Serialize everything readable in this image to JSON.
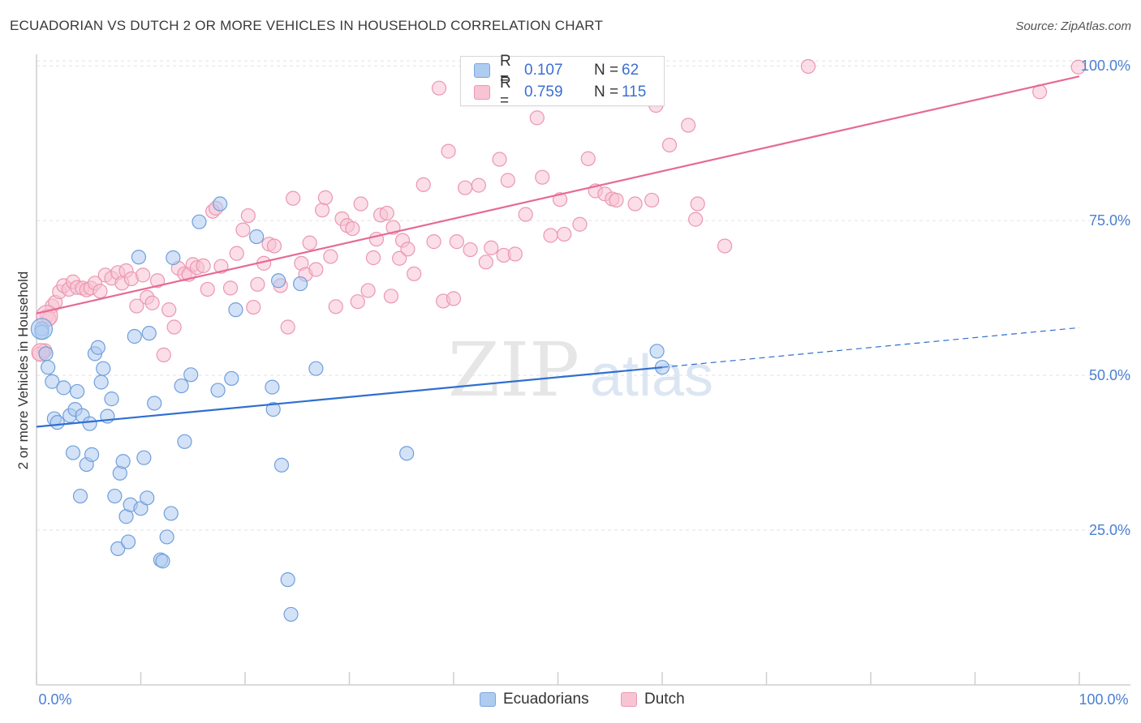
{
  "title": "ECUADORIAN VS DUTCH 2 OR MORE VEHICLES IN HOUSEHOLD CORRELATION CHART",
  "source": "Source: ZipAtlas.com",
  "legend": {
    "rows": [
      {
        "r_label": "R =",
        "r_value": "0.107",
        "n_label": "N =",
        "n_value": "62"
      },
      {
        "r_label": "R =",
        "r_value": "0.759",
        "n_label": "N =",
        "n_value": "115"
      }
    ]
  },
  "bottom_legend": {
    "series1": "Ecuadorians",
    "series2": "Dutch"
  },
  "watermark": {
    "zip": "ZIP",
    "atlas": "atlas"
  },
  "colors": {
    "blue_fill": "#aecbf0",
    "blue_stroke": "#6f9fdc",
    "blue_line": "#2f6fd0",
    "pink_fill": "#f8c3d3",
    "pink_stroke": "#eb97b1",
    "pink_line": "#e66a95",
    "tick_label": "#4a7fd4"
  },
  "chart_data": {
    "type": "scatter",
    "title": "ECUADORIAN VS DUTCH 2 OR MORE VEHICLES IN HOUSEHOLD CORRELATION CHART",
    "xlabel": "",
    "ylabel": "2 or more Vehicles in Household",
    "xlim": [
      0,
      100
    ],
    "ylim": [
      0,
      102
    ],
    "x_tick_labels": [
      "0.0%",
      "100.0%"
    ],
    "y_ticks": [
      25,
      50,
      75,
      100
    ],
    "y_tick_labels": [
      "25.0%",
      "50.0%",
      "75.0%",
      "100.0%"
    ],
    "grid": true,
    "series": [
      {
        "name": "Ecuadorians",
        "r": 0.107,
        "n": 62,
        "trend": {
          "x": [
            0,
            60
          ],
          "y": [
            41.7,
            51.3
          ],
          "dashed_to": [
            100,
            57.7
          ]
        },
        "points": [
          [
            0.5,
            57.5
          ],
          [
            0.5,
            57.0
          ],
          [
            0.9,
            53.5
          ],
          [
            1.1,
            51.3
          ],
          [
            1.5,
            49.0
          ],
          [
            1.7,
            43.0
          ],
          [
            2.0,
            42.4
          ],
          [
            2.6,
            48.0
          ],
          [
            3.2,
            43.5
          ],
          [
            3.5,
            37.5
          ],
          [
            3.7,
            44.5
          ],
          [
            3.9,
            47.4
          ],
          [
            4.2,
            30.5
          ],
          [
            4.4,
            43.5
          ],
          [
            4.8,
            35.6
          ],
          [
            5.1,
            42.2
          ],
          [
            5.3,
            37.2
          ],
          [
            5.6,
            53.5
          ],
          [
            5.9,
            54.5
          ],
          [
            6.2,
            48.9
          ],
          [
            6.4,
            51.1
          ],
          [
            6.8,
            43.4
          ],
          [
            7.2,
            46.2
          ],
          [
            7.5,
            30.5
          ],
          [
            7.8,
            22.0
          ],
          [
            8.0,
            34.2
          ],
          [
            8.3,
            36.1
          ],
          [
            8.6,
            27.2
          ],
          [
            8.8,
            23.1
          ],
          [
            9.0,
            29.1
          ],
          [
            9.4,
            56.3
          ],
          [
            9.8,
            69.1
          ],
          [
            10.0,
            28.5
          ],
          [
            10.3,
            36.7
          ],
          [
            10.6,
            30.2
          ],
          [
            10.8,
            56.8
          ],
          [
            11.3,
            45.5
          ],
          [
            11.9,
            20.2
          ],
          [
            12.1,
            20.0
          ],
          [
            12.5,
            23.9
          ],
          [
            12.9,
            27.7
          ],
          [
            13.1,
            69.0
          ],
          [
            13.9,
            48.3
          ],
          [
            14.2,
            39.3
          ],
          [
            14.8,
            50.1
          ],
          [
            15.6,
            74.8
          ],
          [
            17.4,
            47.6
          ],
          [
            17.6,
            77.7
          ],
          [
            18.7,
            49.5
          ],
          [
            19.1,
            60.6
          ],
          [
            21.1,
            72.4
          ],
          [
            22.6,
            48.1
          ],
          [
            22.7,
            44.5
          ],
          [
            23.2,
            65.3
          ],
          [
            23.5,
            35.5
          ],
          [
            24.1,
            17.0
          ],
          [
            24.4,
            11.4
          ],
          [
            25.3,
            64.8
          ],
          [
            26.8,
            51.1
          ],
          [
            35.5,
            37.4
          ],
          [
            59.5,
            53.9
          ],
          [
            60.0,
            51.3
          ]
        ]
      },
      {
        "name": "Dutch",
        "r": 0.759,
        "n": 115,
        "trend": {
          "x": [
            0,
            100
          ],
          "y": [
            60.0,
            98.3
          ]
        },
        "points": [
          [
            0.3,
            53.5
          ],
          [
            0.8,
            54.0
          ],
          [
            1.0,
            59.6
          ],
          [
            1.2,
            59.2
          ],
          [
            1.5,
            61.2
          ],
          [
            1.8,
            61.8
          ],
          [
            2.2,
            63.5
          ],
          [
            2.6,
            64.5
          ],
          [
            3.1,
            63.9
          ],
          [
            3.5,
            65.1
          ],
          [
            3.9,
            64.2
          ],
          [
            4.4,
            64.1
          ],
          [
            4.8,
            63.8
          ],
          [
            5.2,
            64.1
          ],
          [
            5.6,
            64.9
          ],
          [
            6.1,
            63.6
          ],
          [
            6.6,
            66.2
          ],
          [
            7.2,
            65.7
          ],
          [
            7.8,
            66.6
          ],
          [
            8.2,
            64.9
          ],
          [
            8.6,
            66.9
          ],
          [
            9.1,
            65.6
          ],
          [
            9.6,
            61.2
          ],
          [
            10.2,
            66.2
          ],
          [
            10.6,
            62.6
          ],
          [
            11.1,
            61.7
          ],
          [
            11.6,
            65.3
          ],
          [
            12.2,
            53.3
          ],
          [
            12.7,
            60.6
          ],
          [
            13.2,
            57.8
          ],
          [
            13.6,
            67.3
          ],
          [
            14.2,
            66.4
          ],
          [
            14.6,
            66.3
          ],
          [
            15.0,
            67.9
          ],
          [
            15.4,
            67.4
          ],
          [
            16.0,
            67.7
          ],
          [
            16.4,
            63.9
          ],
          [
            16.9,
            76.5
          ],
          [
            17.2,
            77.0
          ],
          [
            17.7,
            67.6
          ],
          [
            18.6,
            64.1
          ],
          [
            19.2,
            69.7
          ],
          [
            19.8,
            73.5
          ],
          [
            20.3,
            75.8
          ],
          [
            20.8,
            61.0
          ],
          [
            21.2,
            64.7
          ],
          [
            21.8,
            68.1
          ],
          [
            22.3,
            71.2
          ],
          [
            22.8,
            70.9
          ],
          [
            23.4,
            64.5
          ],
          [
            24.1,
            57.8
          ],
          [
            24.6,
            78.6
          ],
          [
            25.4,
            68.1
          ],
          [
            25.8,
            66.3
          ],
          [
            26.2,
            71.4
          ],
          [
            26.8,
            67.1
          ],
          [
            27.4,
            76.7
          ],
          [
            27.7,
            78.7
          ],
          [
            28.2,
            69.2
          ],
          [
            28.7,
            61.1
          ],
          [
            29.3,
            75.3
          ],
          [
            29.8,
            74.2
          ],
          [
            30.3,
            73.7
          ],
          [
            30.8,
            61.9
          ],
          [
            31.1,
            77.7
          ],
          [
            31.8,
            63.7
          ],
          [
            32.3,
            69.0
          ],
          [
            32.6,
            72.0
          ],
          [
            33.0,
            75.9
          ],
          [
            33.6,
            76.2
          ],
          [
            34.0,
            62.8
          ],
          [
            34.2,
            73.9
          ],
          [
            34.8,
            68.9
          ],
          [
            35.1,
            71.8
          ],
          [
            35.6,
            70.4
          ],
          [
            36.2,
            66.4
          ],
          [
            37.1,
            80.8
          ],
          [
            38.1,
            71.6
          ],
          [
            38.6,
            96.4
          ],
          [
            39.0,
            62.0
          ],
          [
            39.5,
            86.2
          ],
          [
            40.0,
            62.4
          ],
          [
            40.3,
            71.6
          ],
          [
            41.1,
            80.3
          ],
          [
            41.6,
            70.3
          ],
          [
            42.4,
            80.7
          ],
          [
            43.1,
            68.3
          ],
          [
            43.6,
            70.6
          ],
          [
            44.4,
            84.9
          ],
          [
            44.8,
            69.4
          ],
          [
            45.2,
            81.5
          ],
          [
            45.9,
            69.6
          ],
          [
            46.9,
            76.0
          ],
          [
            48.0,
            91.6
          ],
          [
            48.5,
            82.0
          ],
          [
            49.3,
            72.6
          ],
          [
            50.2,
            78.4
          ],
          [
            50.6,
            72.8
          ],
          [
            52.1,
            74.4
          ],
          [
            52.9,
            85.0
          ],
          [
            53.6,
            79.8
          ],
          [
            54.5,
            79.3
          ],
          [
            55.2,
            78.5
          ],
          [
            55.6,
            78.3
          ],
          [
            57.4,
            77.7
          ],
          [
            59.0,
            78.3
          ],
          [
            59.4,
            93.6
          ],
          [
            60.7,
            87.2
          ],
          [
            62.5,
            90.4
          ],
          [
            63.2,
            75.2
          ],
          [
            63.4,
            77.7
          ],
          [
            66.0,
            70.9
          ],
          [
            74.0,
            99.9
          ],
          [
            96.2,
            95.8
          ],
          [
            99.9,
            99.8
          ]
        ]
      }
    ]
  }
}
